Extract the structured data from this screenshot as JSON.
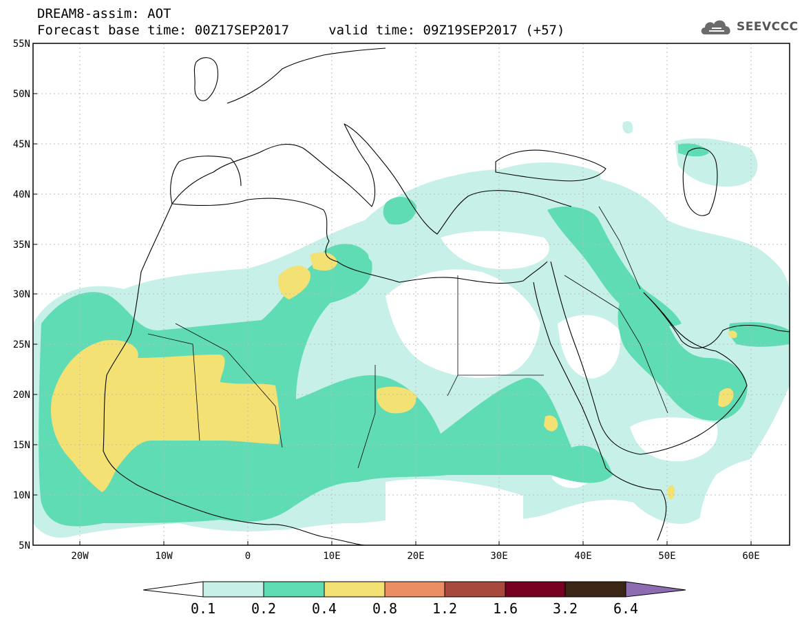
{
  "header": {
    "title_line1": "DREAM8-assim: AOT",
    "title_line2": "Forecast base time: 00Z17SEP2017     valid time: 09Z19SEP2017 (+57)",
    "brand": "SEEVCCC",
    "brand_icon": "cloud-logo-icon"
  },
  "map": {
    "variable": "AOT",
    "lon_range": [
      -25,
      65
    ],
    "lat_range": [
      5,
      55
    ],
    "lon_tick_labels": [
      "20W",
      "10W",
      "0",
      "10E",
      "20E",
      "30E",
      "40E",
      "50E",
      "60E"
    ],
    "lat_tick_labels": [
      "5N",
      "10N",
      "15N",
      "20N",
      "25N",
      "30N",
      "35N",
      "40N",
      "45N",
      "50N",
      "55N"
    ],
    "colors": {
      "ocean_background": "#ffffff",
      "coastline": "#000000",
      "grid": "#bbbbbb"
    }
  },
  "colorbar": {
    "labels": [
      "0.1",
      "0.2",
      "0.4",
      "0.8",
      "1.2",
      "1.6",
      "3.2",
      "6.4"
    ],
    "bins": [
      {
        "range": "<0.1",
        "color": "#ffffff"
      },
      {
        "range": "0.1-0.2",
        "color": "#c6f0e8"
      },
      {
        "range": "0.2-0.4",
        "color": "#5fdcb4"
      },
      {
        "range": "0.4-0.8",
        "color": "#f4e173"
      },
      {
        "range": "0.8-1.2",
        "color": "#eb8e64"
      },
      {
        "range": "1.2-1.6",
        "color": "#a84a3b"
      },
      {
        "range": "1.6-3.2",
        "color": "#770020"
      },
      {
        "range": "3.2-6.4",
        "color": "#3b2616"
      },
      {
        "range": ">6.4",
        "color": "#8e6cb1"
      }
    ]
  }
}
